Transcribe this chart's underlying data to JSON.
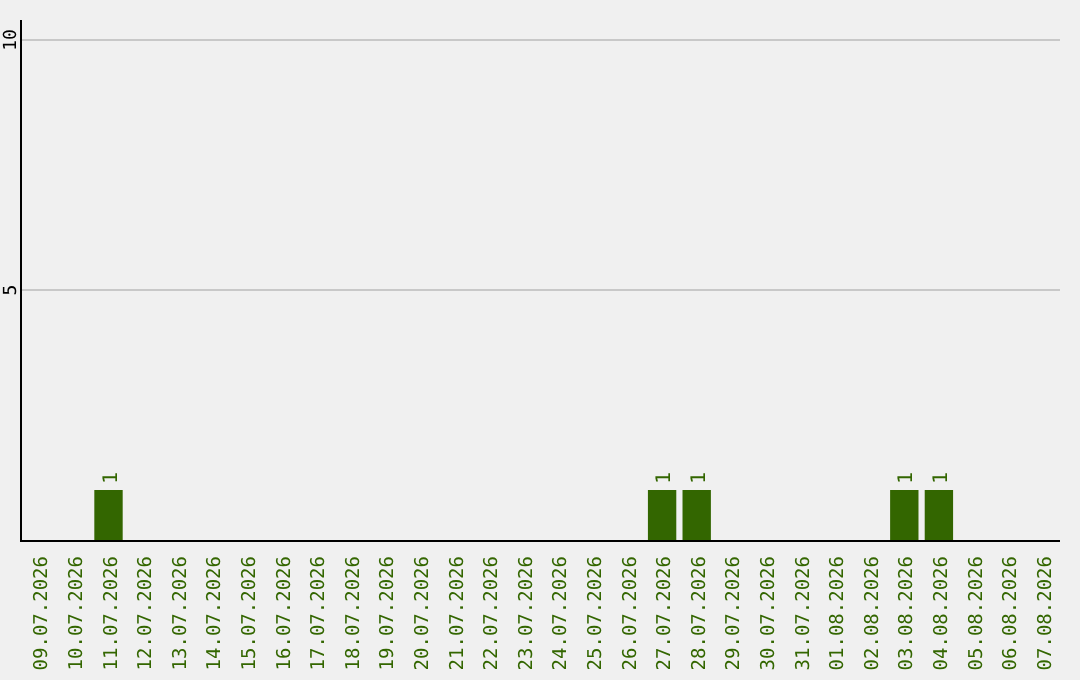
{
  "chart_data": {
    "type": "bar",
    "categories": [
      "09.07.2026",
      "10.07.2026",
      "11.07.2026",
      "12.07.2026",
      "13.07.2026",
      "14.07.2026",
      "15.07.2026",
      "16.07.2026",
      "17.07.2026",
      "18.07.2026",
      "19.07.2026",
      "20.07.2026",
      "21.07.2026",
      "22.07.2026",
      "23.07.2026",
      "24.07.2026",
      "25.07.2026",
      "26.07.2026",
      "27.07.2026",
      "28.07.2026",
      "29.07.2026",
      "30.07.2026",
      "31.07.2026",
      "01.08.2026",
      "02.08.2026",
      "03.08.2026",
      "04.08.2026",
      "05.08.2026",
      "06.08.2026",
      "07.08.2026"
    ],
    "values": [
      0,
      0,
      1,
      0,
      0,
      0,
      0,
      0,
      0,
      0,
      0,
      0,
      0,
      0,
      0,
      0,
      0,
      0,
      1,
      1,
      0,
      0,
      0,
      0,
      0,
      1,
      1,
      0,
      0,
      0
    ],
    "value_labels": [
      null,
      null,
      "1",
      null,
      null,
      null,
      null,
      null,
      null,
      null,
      null,
      null,
      null,
      null,
      null,
      null,
      null,
      null,
      "1",
      "1",
      null,
      null,
      null,
      null,
      null,
      "1",
      "1",
      null,
      null,
      null
    ],
    "color": "#336600",
    "ylim": [
      0,
      10
    ],
    "yticks": [
      5,
      10
    ],
    "grid": "y"
  }
}
